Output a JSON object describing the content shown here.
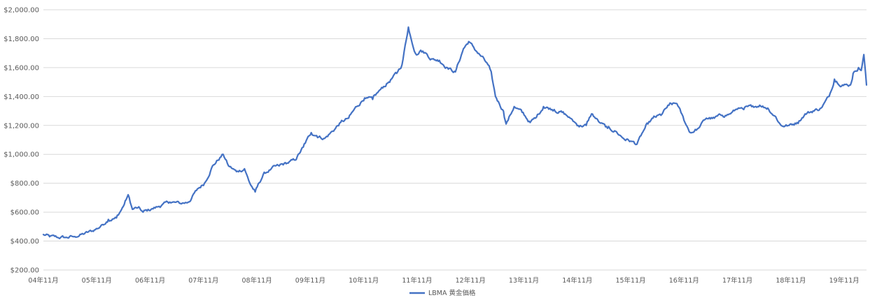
{
  "chart_data": {
    "type": "line",
    "title": "",
    "xlabel": "",
    "ylabel": "",
    "ylim": [
      200,
      2000
    ],
    "y_ticks": [
      200,
      400,
      600,
      800,
      1000,
      1200,
      1400,
      1600,
      1800,
      2000
    ],
    "y_tick_labels": [
      "$200.00",
      "$400.00",
      "$600.00",
      "$800.00",
      "$1,000.00",
      "$1,200.00",
      "$1,400.00",
      "$1,600.00",
      "$1,800.00",
      "$2,000.00"
    ],
    "x_ticks": [
      2004.833,
      2005.833,
      2006.833,
      2007.833,
      2008.833,
      2009.833,
      2010.833,
      2011.833,
      2012.833,
      2013.833,
      2014.833,
      2015.833,
      2016.833,
      2017.833,
      2018.833,
      2019.833
    ],
    "x_tick_labels": [
      "04年11月",
      "05年11月",
      "06年11月",
      "07年11月",
      "08年11月",
      "09年11月",
      "10年11月",
      "11年11月",
      "12年11月",
      "13年11月",
      "14年11月",
      "15年11月",
      "16年11月",
      "17年11月",
      "18年11月",
      "19年11月"
    ],
    "xlim": [
      2004.833,
      2020.25
    ],
    "grid": true,
    "legend_position": "bottom",
    "series": [
      {
        "name": "LBMA 黄金価格",
        "color": "#4472c4",
        "x": [
          2004.833,
          2004.95,
          2005.1,
          2005.25,
          2005.4,
          2005.6,
          2005.75,
          2005.9,
          2006.05,
          2006.2,
          2006.33,
          2006.42,
          2006.5,
          2006.6,
          2006.7,
          2006.85,
          2007.0,
          2007.2,
          2007.4,
          2007.55,
          2007.7,
          2007.85,
          2008.0,
          2008.2,
          2008.3,
          2008.45,
          2008.6,
          2008.7,
          2008.8,
          2008.95,
          2009.1,
          2009.25,
          2009.4,
          2009.55,
          2009.7,
          2009.85,
          2009.95,
          2010.1,
          2010.25,
          2010.4,
          2010.55,
          2010.7,
          2010.85,
          2011.0,
          2011.15,
          2011.3,
          2011.45,
          2011.55,
          2011.67,
          2011.72,
          2011.8,
          2011.9,
          2012.0,
          2012.1,
          2012.25,
          2012.4,
          2012.55,
          2012.7,
          2012.8,
          2012.95,
          2013.1,
          2013.2,
          2013.3,
          2013.45,
          2013.5,
          2013.65,
          2013.8,
          2013.95,
          2014.05,
          2014.2,
          2014.4,
          2014.55,
          2014.7,
          2014.85,
          2015.0,
          2015.1,
          2015.25,
          2015.4,
          2015.55,
          2015.7,
          2015.85,
          2015.95,
          2016.1,
          2016.25,
          2016.4,
          2016.55,
          2016.7,
          2016.85,
          2016.95,
          2017.1,
          2017.25,
          2017.4,
          2017.55,
          2017.7,
          2017.85,
          2017.95,
          2018.1,
          2018.25,
          2018.4,
          2018.55,
          2018.65,
          2018.8,
          2018.95,
          2019.1,
          2019.25,
          2019.4,
          2019.55,
          2019.65,
          2019.8,
          2019.95,
          2020.0,
          2020.1,
          2020.15,
          2020.2,
          2020.25
        ],
        "values": [
          445,
          430,
          425,
          425,
          430,
          450,
          470,
          500,
          550,
          560,
          640,
          720,
          620,
          630,
          600,
          620,
          640,
          670,
          660,
          670,
          750,
          800,
          920,
          1000,
          920,
          880,
          900,
          800,
          740,
          860,
          900,
          920,
          940,
          960,
          1050,
          1150,
          1130,
          1110,
          1160,
          1220,
          1250,
          1330,
          1390,
          1380,
          1450,
          1500,
          1560,
          1620,
          1880,
          1800,
          1700,
          1720,
          1700,
          1660,
          1650,
          1600,
          1570,
          1730,
          1780,
          1710,
          1650,
          1590,
          1400,
          1300,
          1210,
          1330,
          1290,
          1220,
          1250,
          1330,
          1310,
          1290,
          1250,
          1200,
          1200,
          1280,
          1220,
          1180,
          1160,
          1110,
          1090,
          1070,
          1180,
          1250,
          1270,
          1340,
          1350,
          1220,
          1150,
          1180,
          1250,
          1250,
          1270,
          1280,
          1320,
          1310,
          1330,
          1340,
          1320,
          1260,
          1200,
          1200,
          1220,
          1280,
          1300,
          1320,
          1400,
          1520,
          1480,
          1480,
          1560,
          1600,
          1580,
          1690,
          1480
        ],
        "noise_amplitude": 18
      }
    ]
  }
}
